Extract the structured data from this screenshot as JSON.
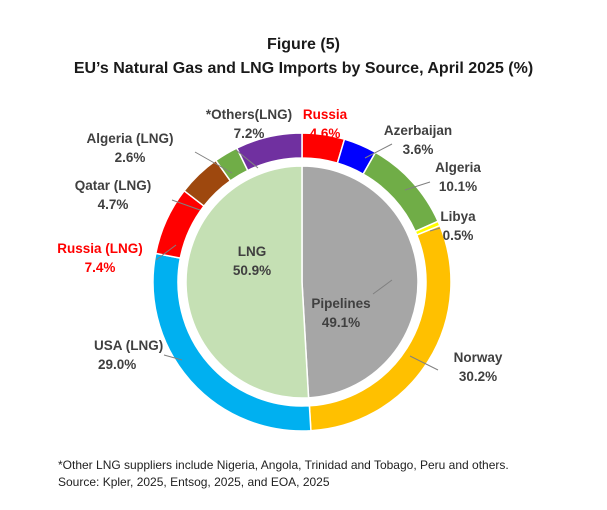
{
  "figure_label": "Figure (5)",
  "title": "EU’s Natural Gas and LNG Imports by Source, April 2025 (%)",
  "footnotes": [
    "*Other LNG suppliers include Nigeria, Angola, Trinidad and Tobago, Peru and others.",
    "Source: Kpler, 2025, Entsog, 2025, and EOA, 2025"
  ],
  "chart_data": {
    "type": "pie",
    "subtype": "nested-donut",
    "title": "EU’s Natural Gas and LNG Imports by Source, April 2025 (%)",
    "inner": [
      {
        "name": "Pipelines",
        "value": 49.1,
        "label": "Pipelines",
        "value_label": "49.1%",
        "color": "#a6a6a6"
      },
      {
        "name": "LNG",
        "value": 50.9,
        "label": "LNG",
        "value_label": "50.9%",
        "color": "#c5e0b4"
      }
    ],
    "outer": [
      {
        "name": "Russia",
        "value": 4.6,
        "label": "Russia",
        "value_label": "4.6%",
        "color": "#ff0000",
        "label_color": "#ff0000"
      },
      {
        "name": "Azerbaijan",
        "value": 3.6,
        "label": "Azerbaijan",
        "value_label": "3.6%",
        "color": "#0000ff",
        "label_color": "#404040"
      },
      {
        "name": "Algeria",
        "value": 10.1,
        "label": "Algeria",
        "value_label": "10.1%",
        "color": "#70ad47",
        "label_color": "#404040"
      },
      {
        "name": "Libya",
        "value": 0.5,
        "label": "Libya",
        "value_label": "0.5%",
        "color": "#ffff00",
        "label_color": "#404040"
      },
      {
        "name": "Norway",
        "value": 30.2,
        "label": "Norway",
        "value_label": "30.2%",
        "color": "#ffc000",
        "label_color": "#404040"
      },
      {
        "name": "USA (LNG)",
        "value": 29.0,
        "label": "USA (LNG)",
        "value_label": "29.0%",
        "color": "#00b0f0",
        "label_color": "#404040"
      },
      {
        "name": "Russia (LNG)",
        "value": 7.4,
        "label": "Russia (LNG)",
        "value_label": "7.4%",
        "color": "#ff0000",
        "label_color": "#ff0000"
      },
      {
        "name": "Qatar (LNG)",
        "value": 4.7,
        "label": "Qatar (LNG)",
        "value_label": "4.7%",
        "color": "#9e480e",
        "label_color": "#404040"
      },
      {
        "name": "Algeria (LNG)",
        "value": 2.6,
        "label": "Algeria  (LNG)",
        "value_label": "2.6%",
        "color": "#70ad47",
        "label_color": "#404040"
      },
      {
        "name": "*Others(LNG)",
        "value": 7.2,
        "label": "*Others(LNG)",
        "value_label": "7.2%",
        "color": "#7030a0",
        "label_color": "#404040"
      }
    ]
  }
}
